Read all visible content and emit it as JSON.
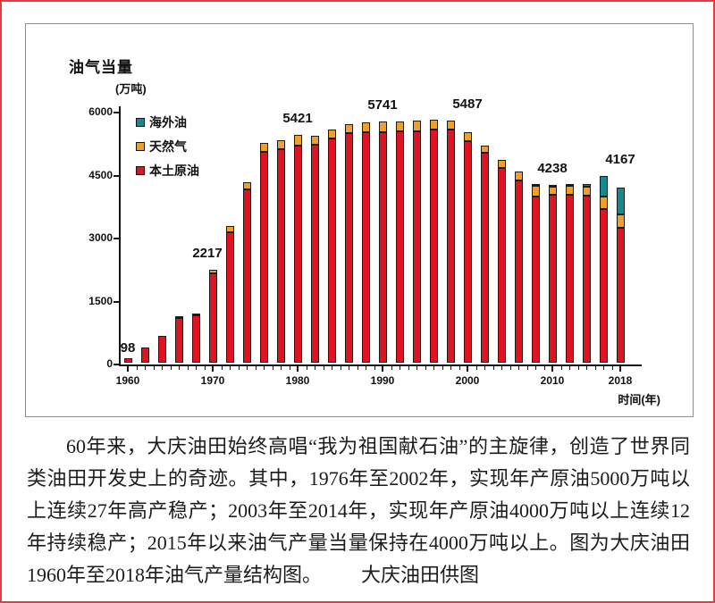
{
  "chart_data": {
    "type": "bar",
    "stacked": true,
    "title": "油气当量",
    "unit": "(万吨)",
    "xlabel": "时间(年)",
    "ylim": [
      0,
      6000
    ],
    "y_ticks": [
      0,
      1500,
      3000,
      4500,
      6000
    ],
    "x_tick_years": [
      1960,
      1970,
      1980,
      1990,
      2000,
      2010,
      2018
    ],
    "grid": false,
    "legend_position": "upper-left-inside",
    "categories": [
      1960,
      1962,
      1964,
      1966,
      1968,
      1970,
      1972,
      1974,
      1976,
      1978,
      1980,
      1982,
      1984,
      1986,
      1988,
      1990,
      1992,
      1994,
      1996,
      1998,
      2000,
      2002,
      2004,
      2006,
      2008,
      2010,
      2012,
      2014,
      2016,
      2018
    ],
    "series": [
      {
        "name": "本土原油",
        "color": "#e11322",
        "values": [
          98,
          370,
          640,
          1060,
          1120,
          2130,
          3100,
          4120,
          5030,
          5090,
          5180,
          5190,
          5350,
          5470,
          5490,
          5500,
          5510,
          5520,
          5560,
          5550,
          5270,
          5000,
          4640,
          4341,
          3960,
          3990,
          4000,
          3970,
          3656,
          3204
        ]
      },
      {
        "name": "天然气",
        "color": "#f09f28",
        "values": [
          0,
          0,
          0,
          30,
          60,
          87,
          160,
          170,
          200,
          210,
          241,
          220,
          210,
          220,
          230,
          241,
          235,
          240,
          220,
          215,
          217,
          180,
          180,
          210,
          250,
          210,
          220,
          230,
          310,
          333
        ]
      },
      {
        "name": "海外油",
        "color": "#15898e",
        "values": [
          0,
          0,
          0,
          0,
          0,
          0,
          0,
          0,
          0,
          0,
          0,
          0,
          0,
          0,
          0,
          0,
          0,
          0,
          0,
          0,
          0,
          0,
          0,
          0,
          25,
          38,
          20,
          50,
          480,
          630
        ]
      }
    ],
    "point_labels": [
      {
        "year": 1960,
        "text": "98"
      },
      {
        "year": 1970,
        "text": "2217"
      },
      {
        "year": 1980,
        "text": "5421"
      },
      {
        "year": 1990,
        "text": "5741"
      },
      {
        "year": 2000,
        "text": "5487"
      },
      {
        "year": 2010,
        "text": "4238"
      },
      {
        "year": 2018,
        "text": "4167"
      }
    ]
  },
  "caption": {
    "text": "60年来，大庆油田始终高唱“我为祖国献石油”的主旋律，创造了世界同类油田开发史上的奇迹。其中，1976年至2002年，实现年产原油5000万吨以上连续27年高产稳产；2003年至2014年，实现年产原油4000万吨以上连续12年持续稳产；2015年以来油气产量当量保持在4000万吨以上。图为大庆油田1960年至2018年油气产量结构图。",
    "credit": "大庆油田供图"
  }
}
